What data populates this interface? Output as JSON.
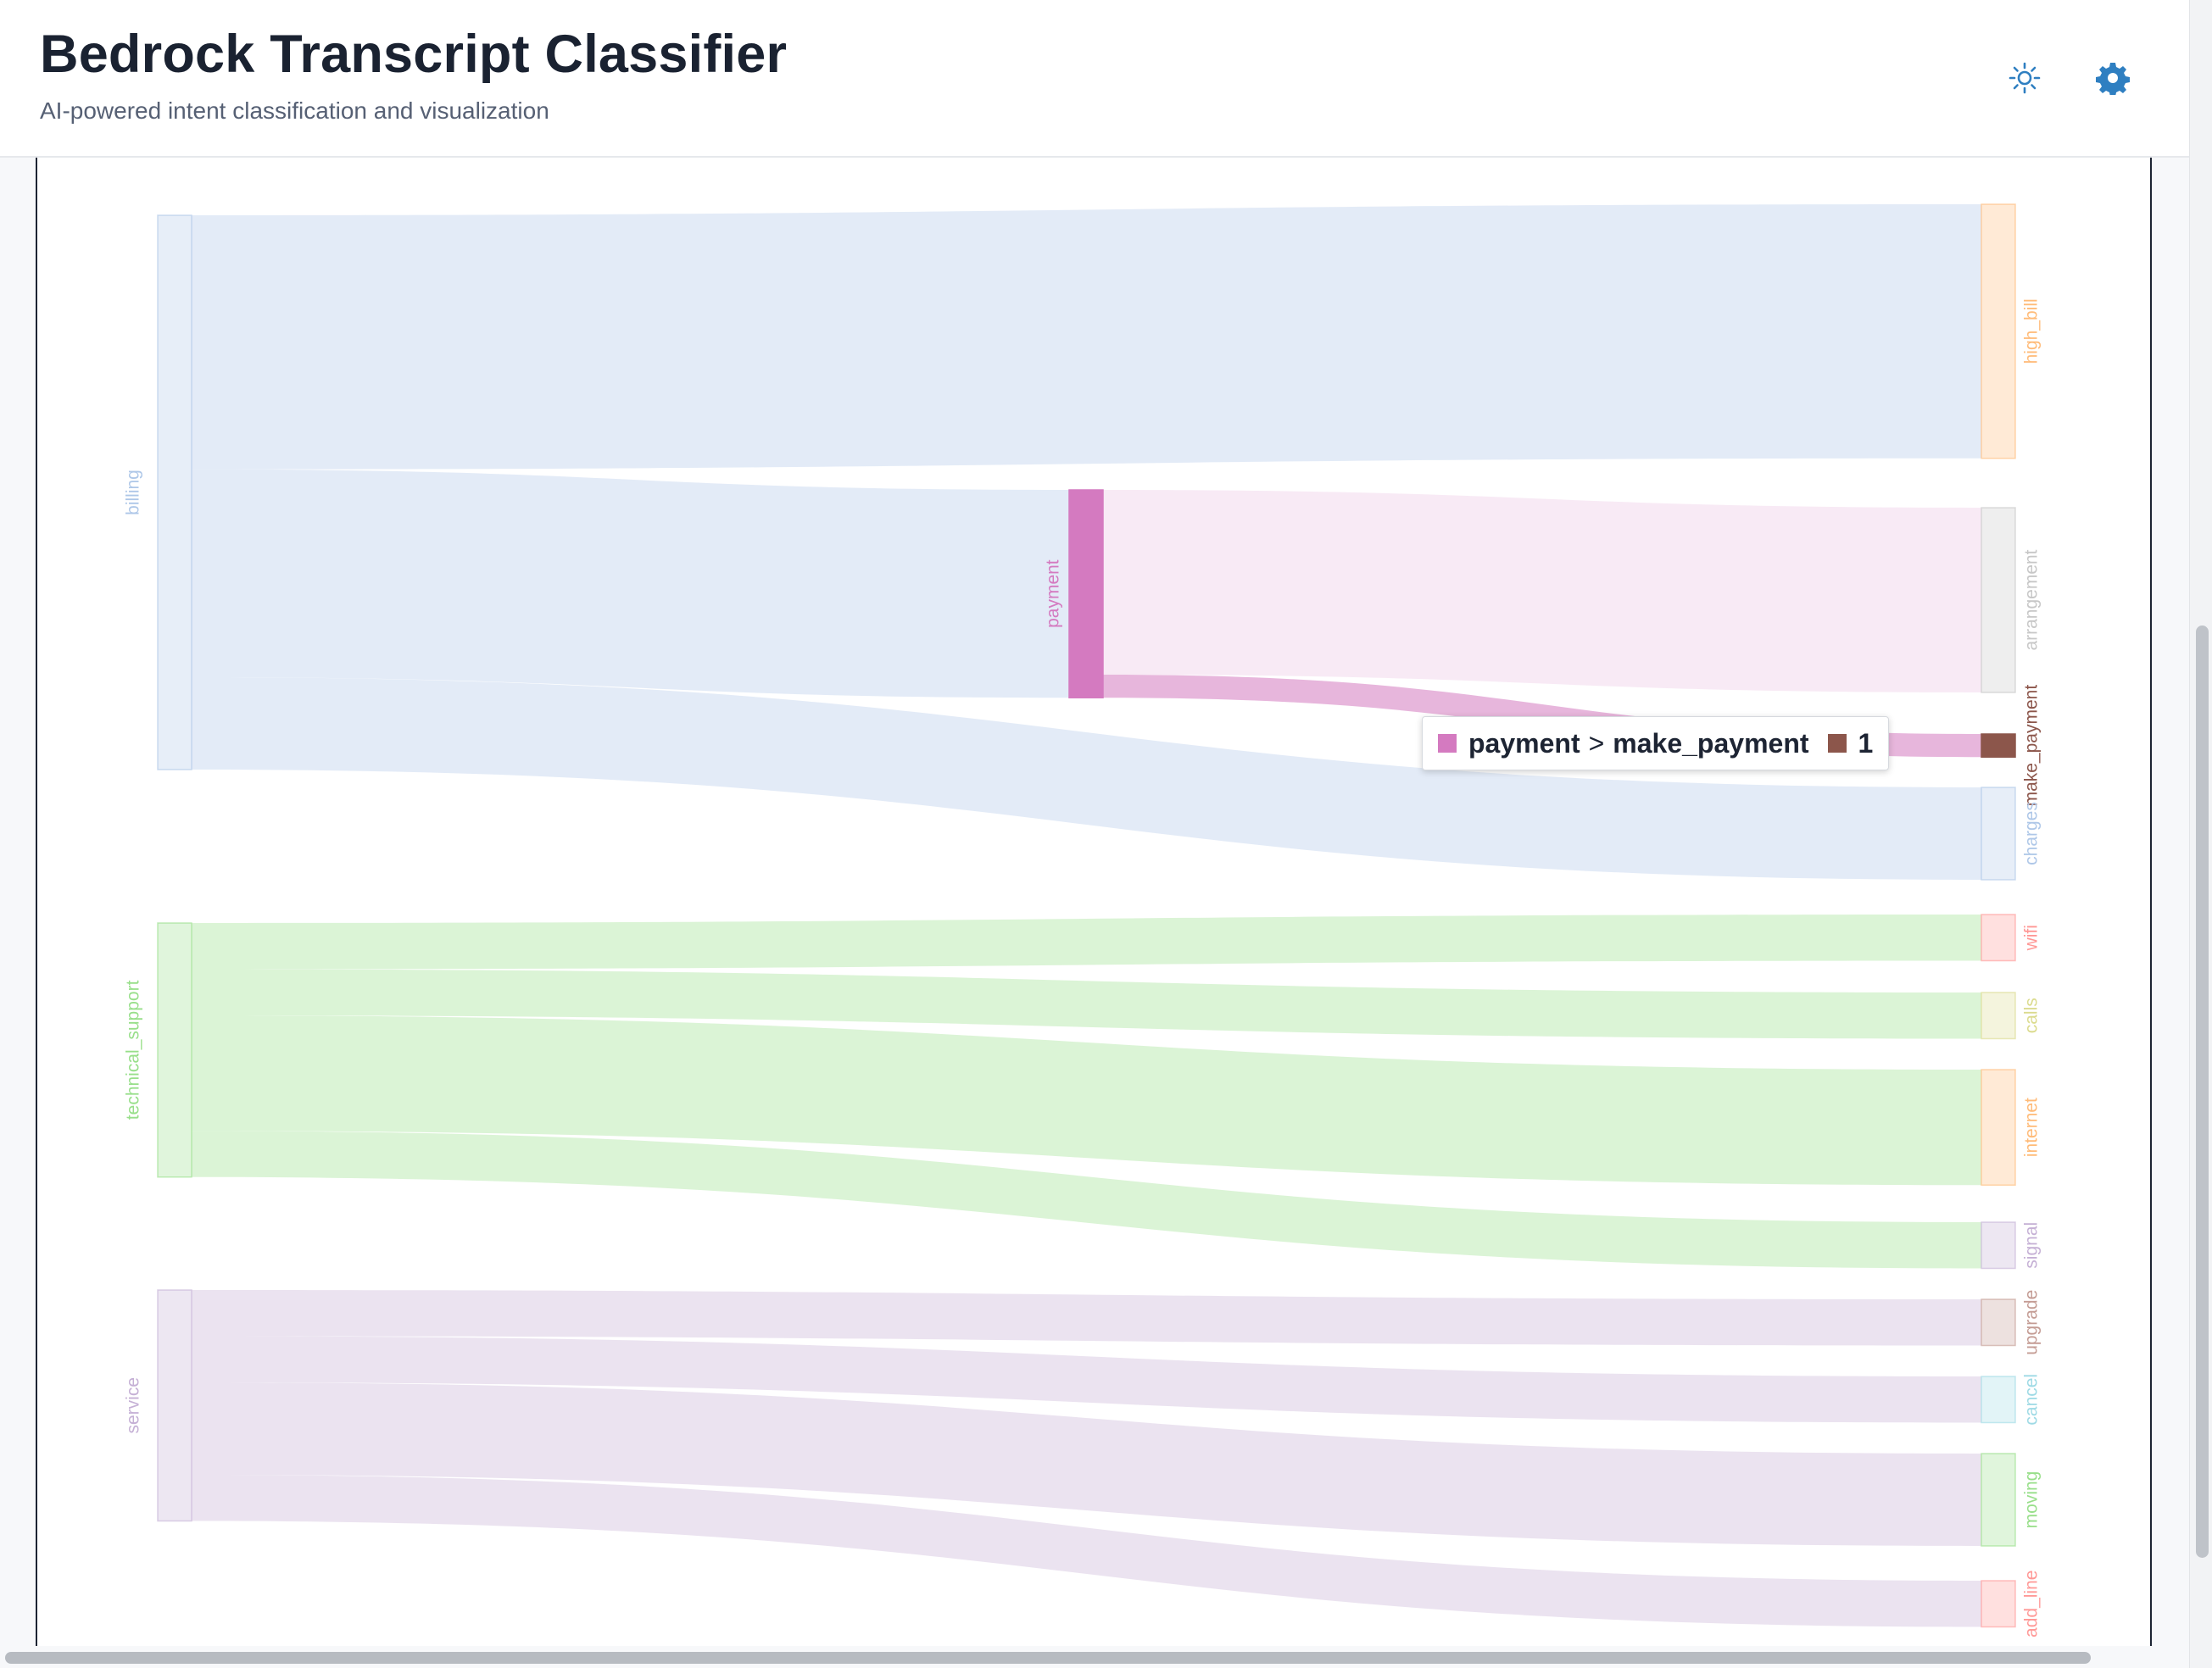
{
  "header": {
    "title": "Bedrock Transcript Classifier",
    "subtitle": "AI-powered intent classification and visualization",
    "theme_icon": "sun-icon",
    "settings_icon": "gear-icon",
    "accent_color": "#2f7fc1"
  },
  "tooltip": {
    "source": "payment",
    "separator": ">",
    "target": "make_payment",
    "value": "1",
    "source_color": "#d47ac0",
    "target_color": "#8c564b"
  },
  "chart_data": {
    "type": "sankey",
    "nodes": [
      {
        "id": "billing",
        "label": "billing",
        "color": "#aec7e8",
        "value": 12
      },
      {
        "id": "technical_support",
        "label": "technical_support",
        "color": "#98df8a",
        "value": 5.5
      },
      {
        "id": "service",
        "label": "service",
        "color": "#c5b0d5",
        "value": 5
      },
      {
        "id": "payment",
        "label": "payment",
        "color": "#d47ac0",
        "value": 4.5
      },
      {
        "id": "high_bill",
        "label": "high_bill",
        "color": "#ffbb78",
        "value": 5.5
      },
      {
        "id": "arrangement",
        "label": "arrangement",
        "color": "#c7c7c7",
        "value": 4
      },
      {
        "id": "make_payment",
        "label": "make_payment",
        "color": "#8c564b",
        "value": 0.5
      },
      {
        "id": "charges",
        "label": "charges",
        "color": "#aec7e8",
        "value": 2
      },
      {
        "id": "wifi",
        "label": "wifi",
        "color": "#ff9896",
        "value": 1
      },
      {
        "id": "calls",
        "label": "calls",
        "color": "#dbdb8d",
        "value": 1
      },
      {
        "id": "internet",
        "label": "internet",
        "color": "#ffbb78",
        "value": 2.5
      },
      {
        "id": "signal",
        "label": "signal",
        "color": "#c5b0d5",
        "value": 1
      },
      {
        "id": "upgrade",
        "label": "upgrade",
        "color": "#c49c94",
        "value": 1
      },
      {
        "id": "cancel",
        "label": "cancel",
        "color": "#9edae5",
        "value": 1
      },
      {
        "id": "moving",
        "label": "moving",
        "color": "#98df8a",
        "value": 2
      },
      {
        "id": "add_line",
        "label": "add_line",
        "color": "#ff9896",
        "value": 1
      }
    ],
    "links": [
      {
        "source": "billing",
        "target": "high_bill",
        "value": 5.5
      },
      {
        "source": "billing",
        "target": "payment",
        "value": 4.5
      },
      {
        "source": "billing",
        "target": "charges",
        "value": 2
      },
      {
        "source": "payment",
        "target": "arrangement",
        "value": 4
      },
      {
        "source": "payment",
        "target": "make_payment",
        "value": 0.5
      },
      {
        "source": "technical_support",
        "target": "wifi",
        "value": 1
      },
      {
        "source": "technical_support",
        "target": "calls",
        "value": 1
      },
      {
        "source": "technical_support",
        "target": "internet",
        "value": 2.5
      },
      {
        "source": "technical_support",
        "target": "signal",
        "value": 1
      },
      {
        "source": "service",
        "target": "upgrade",
        "value": 1
      },
      {
        "source": "service",
        "target": "cancel",
        "value": 1
      },
      {
        "source": "service",
        "target": "moving",
        "value": 2
      },
      {
        "source": "service",
        "target": "add_line",
        "value": 1
      }
    ]
  }
}
